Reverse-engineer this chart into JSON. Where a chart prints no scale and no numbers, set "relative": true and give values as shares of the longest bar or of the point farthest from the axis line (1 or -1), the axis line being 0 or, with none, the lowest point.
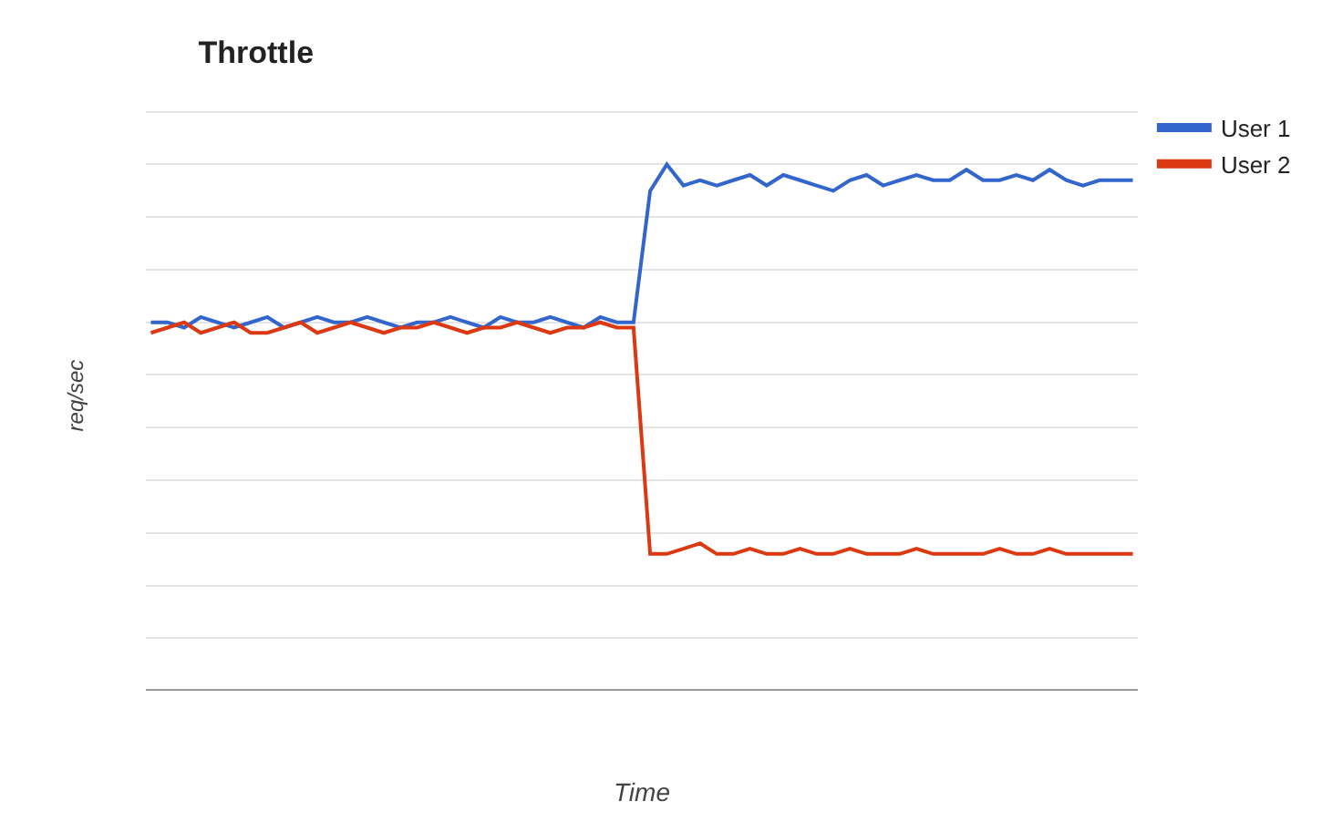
{
  "chart_data": {
    "type": "line",
    "title": "Throttle",
    "xlabel": "Time",
    "ylabel": "req/sec",
    "relative": true,
    "grid": "y",
    "legend": "top right",
    "categories": [
      null,
      null,
      null,
      null,
      null,
      null,
      null,
      null,
      null,
      null,
      null,
      null,
      null,
      null,
      null,
      null,
      null,
      null,
      null,
      null,
      null,
      null,
      null,
      null,
      null,
      null,
      null,
      null,
      null,
      null,
      null,
      null,
      null,
      null,
      null,
      null,
      null,
      null,
      null,
      null,
      null,
      null,
      null,
      null,
      null,
      null,
      null,
      null,
      null,
      null,
      null,
      null,
      null,
      null,
      null,
      null,
      null,
      null,
      null,
      null
    ],
    "series": [
      {
        "name": "User 1",
        "color": "#3366cc",
        "values": [
          0.7,
          0.7,
          0.69,
          0.71,
          0.7,
          0.69,
          0.7,
          0.71,
          0.69,
          0.7,
          0.71,
          0.7,
          0.7,
          0.71,
          0.7,
          0.69,
          0.7,
          0.7,
          0.71,
          0.7,
          0.69,
          0.71,
          0.7,
          0.7,
          0.71,
          0.7,
          0.69,
          0.71,
          0.7,
          0.7,
          0.95,
          1.0,
          0.96,
          0.97,
          0.96,
          0.97,
          0.98,
          0.96,
          0.98,
          0.97,
          0.96,
          0.95,
          0.97,
          0.98,
          0.96,
          0.97,
          0.98,
          0.97,
          0.97,
          0.99,
          0.97,
          0.97,
          0.98,
          0.97,
          0.99,
          0.97,
          0.96,
          0.97,
          0.97,
          0.97
        ]
      },
      {
        "name": "User 2",
        "color": "#dc3912",
        "values": [
          0.68,
          0.69,
          0.7,
          0.68,
          0.69,
          0.7,
          0.68,
          0.68,
          0.69,
          0.7,
          0.68,
          0.69,
          0.7,
          0.69,
          0.68,
          0.69,
          0.69,
          0.7,
          0.69,
          0.68,
          0.69,
          0.69,
          0.7,
          0.69,
          0.68,
          0.69,
          0.69,
          0.7,
          0.69,
          0.69,
          0.26,
          0.26,
          0.27,
          0.28,
          0.26,
          0.26,
          0.27,
          0.26,
          0.26,
          0.27,
          0.26,
          0.26,
          0.27,
          0.26,
          0.26,
          0.26,
          0.27,
          0.26,
          0.26,
          0.26,
          0.26,
          0.27,
          0.26,
          0.26,
          0.27,
          0.26,
          0.26,
          0.26,
          0.26,
          0.26
        ]
      }
    ]
  }
}
